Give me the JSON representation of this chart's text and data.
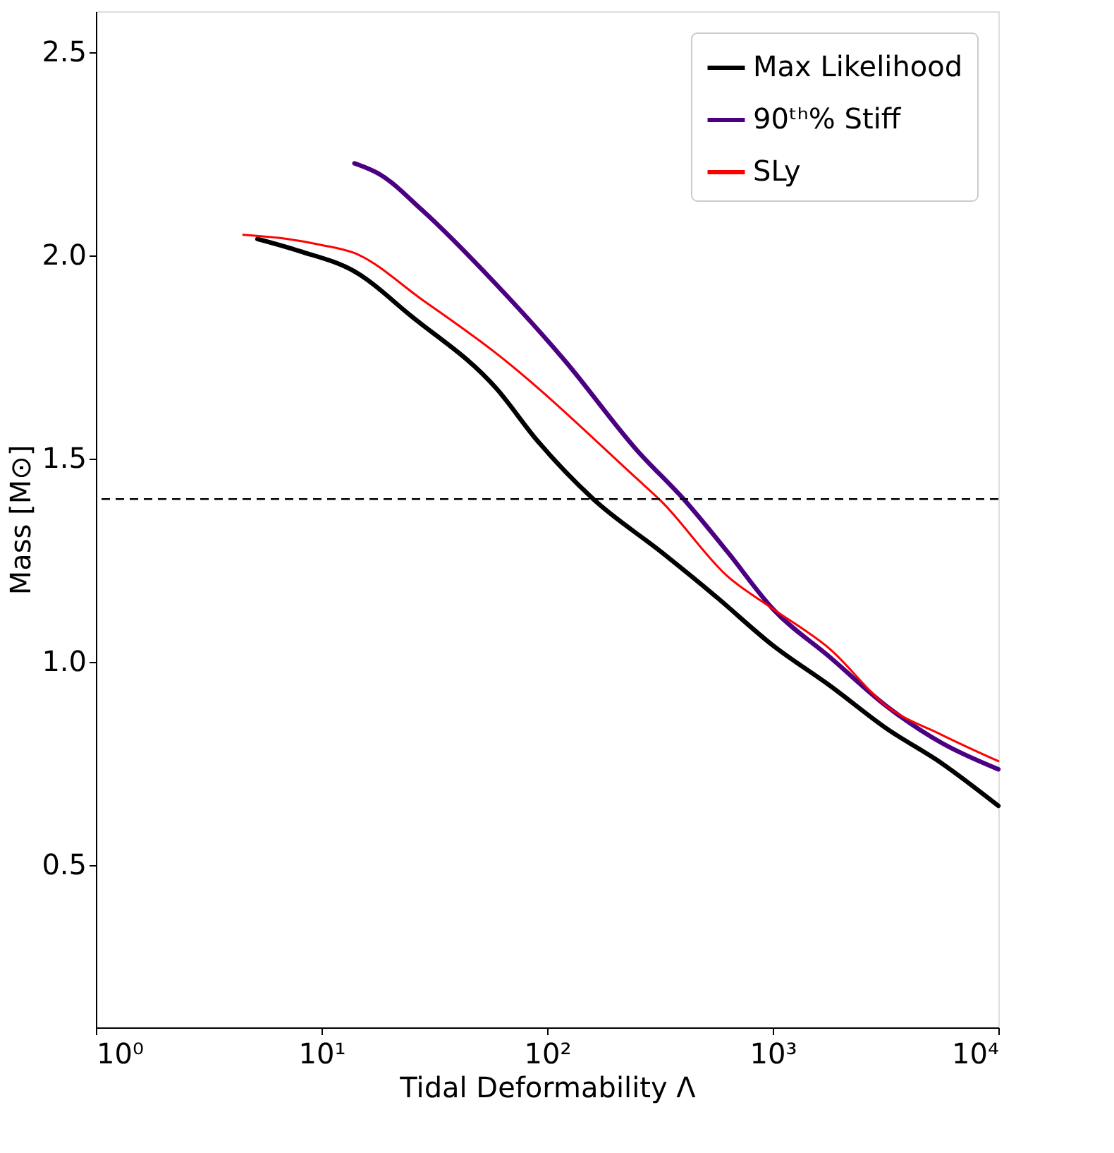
{
  "chart_data": {
    "type": "line",
    "xlabel": "Tidal Deformability Λ",
    "ylabel": "Mass [M⊙]",
    "log": "x",
    "xlim": [
      1,
      10000
    ],
    "ylim": [
      0.1,
      2.6
    ],
    "xticks": [
      {
        "value": 1,
        "label": "10⁰"
      },
      {
        "value": 10,
        "label": "10¹"
      },
      {
        "value": 100,
        "label": "10²"
      },
      {
        "value": 1000,
        "label": "10³"
      },
      {
        "value": 10000,
        "label": "10⁴"
      }
    ],
    "yticks": [
      0.5,
      {
        "value": 1,
        "label": "1.0"
      },
      1.5,
      {
        "value": 2,
        "label": "2.0"
      },
      2.5
    ],
    "grid": false,
    "legend": "top right",
    "line_style": "solid",
    "marker": "none",
    "series": [
      {
        "name": "Max Likelihood",
        "color": "#000000",
        "x": [
          5.2,
          8,
          14,
          25,
          60,
          90,
          160,
          320,
          560,
          1000,
          1800,
          3200,
          5600,
          10000
        ],
        "values": [
          2.04,
          2.01,
          1.96,
          1.85,
          1.67,
          1.545,
          1.4,
          1.27,
          1.16,
          1.04,
          0.94,
          0.835,
          0.75,
          0.645
        ]
      },
      {
        "name": "90ᵗʰ% Stiff",
        "color": "#4b0082",
        "x": [
          14,
          18,
          28,
          59,
          120,
          250,
          410,
          630,
          1000,
          1800,
          3200,
          5600,
          10000
        ],
        "values": [
          2.226,
          2.2,
          2.11,
          1.93,
          1.74,
          1.52,
          1.395,
          1.27,
          1.13,
          1.01,
          0.89,
          0.8,
          0.735
        ]
      },
      {
        "name": "SLy",
        "color": "#ff0000",
        "x": [
          4.5,
          7,
          10,
          14,
          28,
          59,
          250,
          320,
          630,
          1000,
          1800,
          3200,
          5600,
          10000
        ],
        "values": [
          2.05,
          2.04,
          2.025,
          2.005,
          1.89,
          1.76,
          1.45,
          1.395,
          1.21,
          1.13,
          1.03,
          0.89,
          0.82,
          0.755
        ]
      }
    ],
    "ref_lines": [
      {
        "axis": "y",
        "value": 1.4,
        "color": "#000000",
        "line_style": "dashed"
      }
    ]
  }
}
